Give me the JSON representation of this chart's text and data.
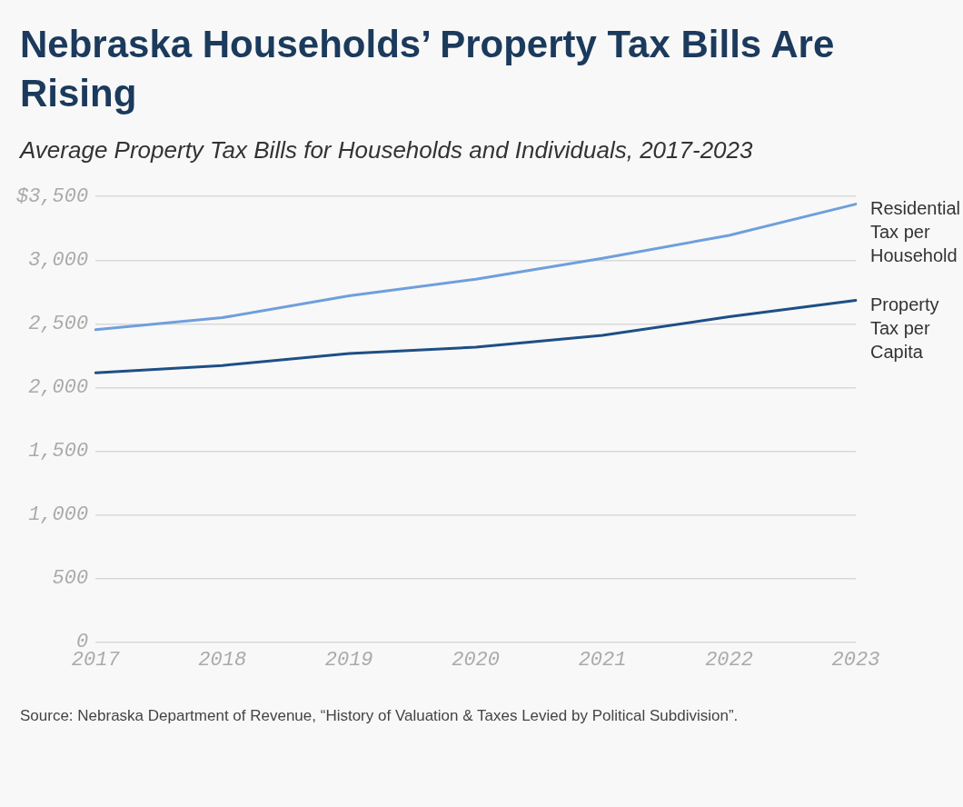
{
  "chart_data": {
    "type": "line",
    "title": "Nebraska Households’ Property Tax Bills Are Rising",
    "subtitle": "Average Property Tax Bills for Households and Individuals, 2017-2023",
    "categories": [
      "2017",
      "2018",
      "2019",
      "2020",
      "2021",
      "2022",
      "2023"
    ],
    "series": [
      {
        "name": "Residential Tax per Household",
        "color": "#6f9fdc",
        "values": [
          2454,
          2548,
          2720,
          2850,
          3015,
          3195,
          3440
        ]
      },
      {
        "name": "Property Tax per Capita",
        "color": "#1e4f85",
        "values": [
          2115,
          2173,
          2267,
          2317,
          2410,
          2555,
          2685
        ]
      }
    ],
    "ylim": [
      0,
      3500
    ],
    "yticks": [
      0,
      500,
      {
        "value": 1000,
        "label": "1,000"
      },
      {
        "value": 1500,
        "label": "1,500"
      },
      {
        "value": 2000,
        "label": "2,000"
      },
      {
        "value": 2500,
        "label": "2,500"
      },
      {
        "value": 3000,
        "label": "3,000"
      },
      {
        "value": 3500,
        "label": "$3,500"
      }
    ],
    "grid": "y",
    "legend": false,
    "marker": "none",
    "line_style": "solid",
    "annotations": [
      "Source: Nebraska Department of Revenue, “History of Valuation & Taxes Levied by Political Subdivision”."
    ]
  }
}
